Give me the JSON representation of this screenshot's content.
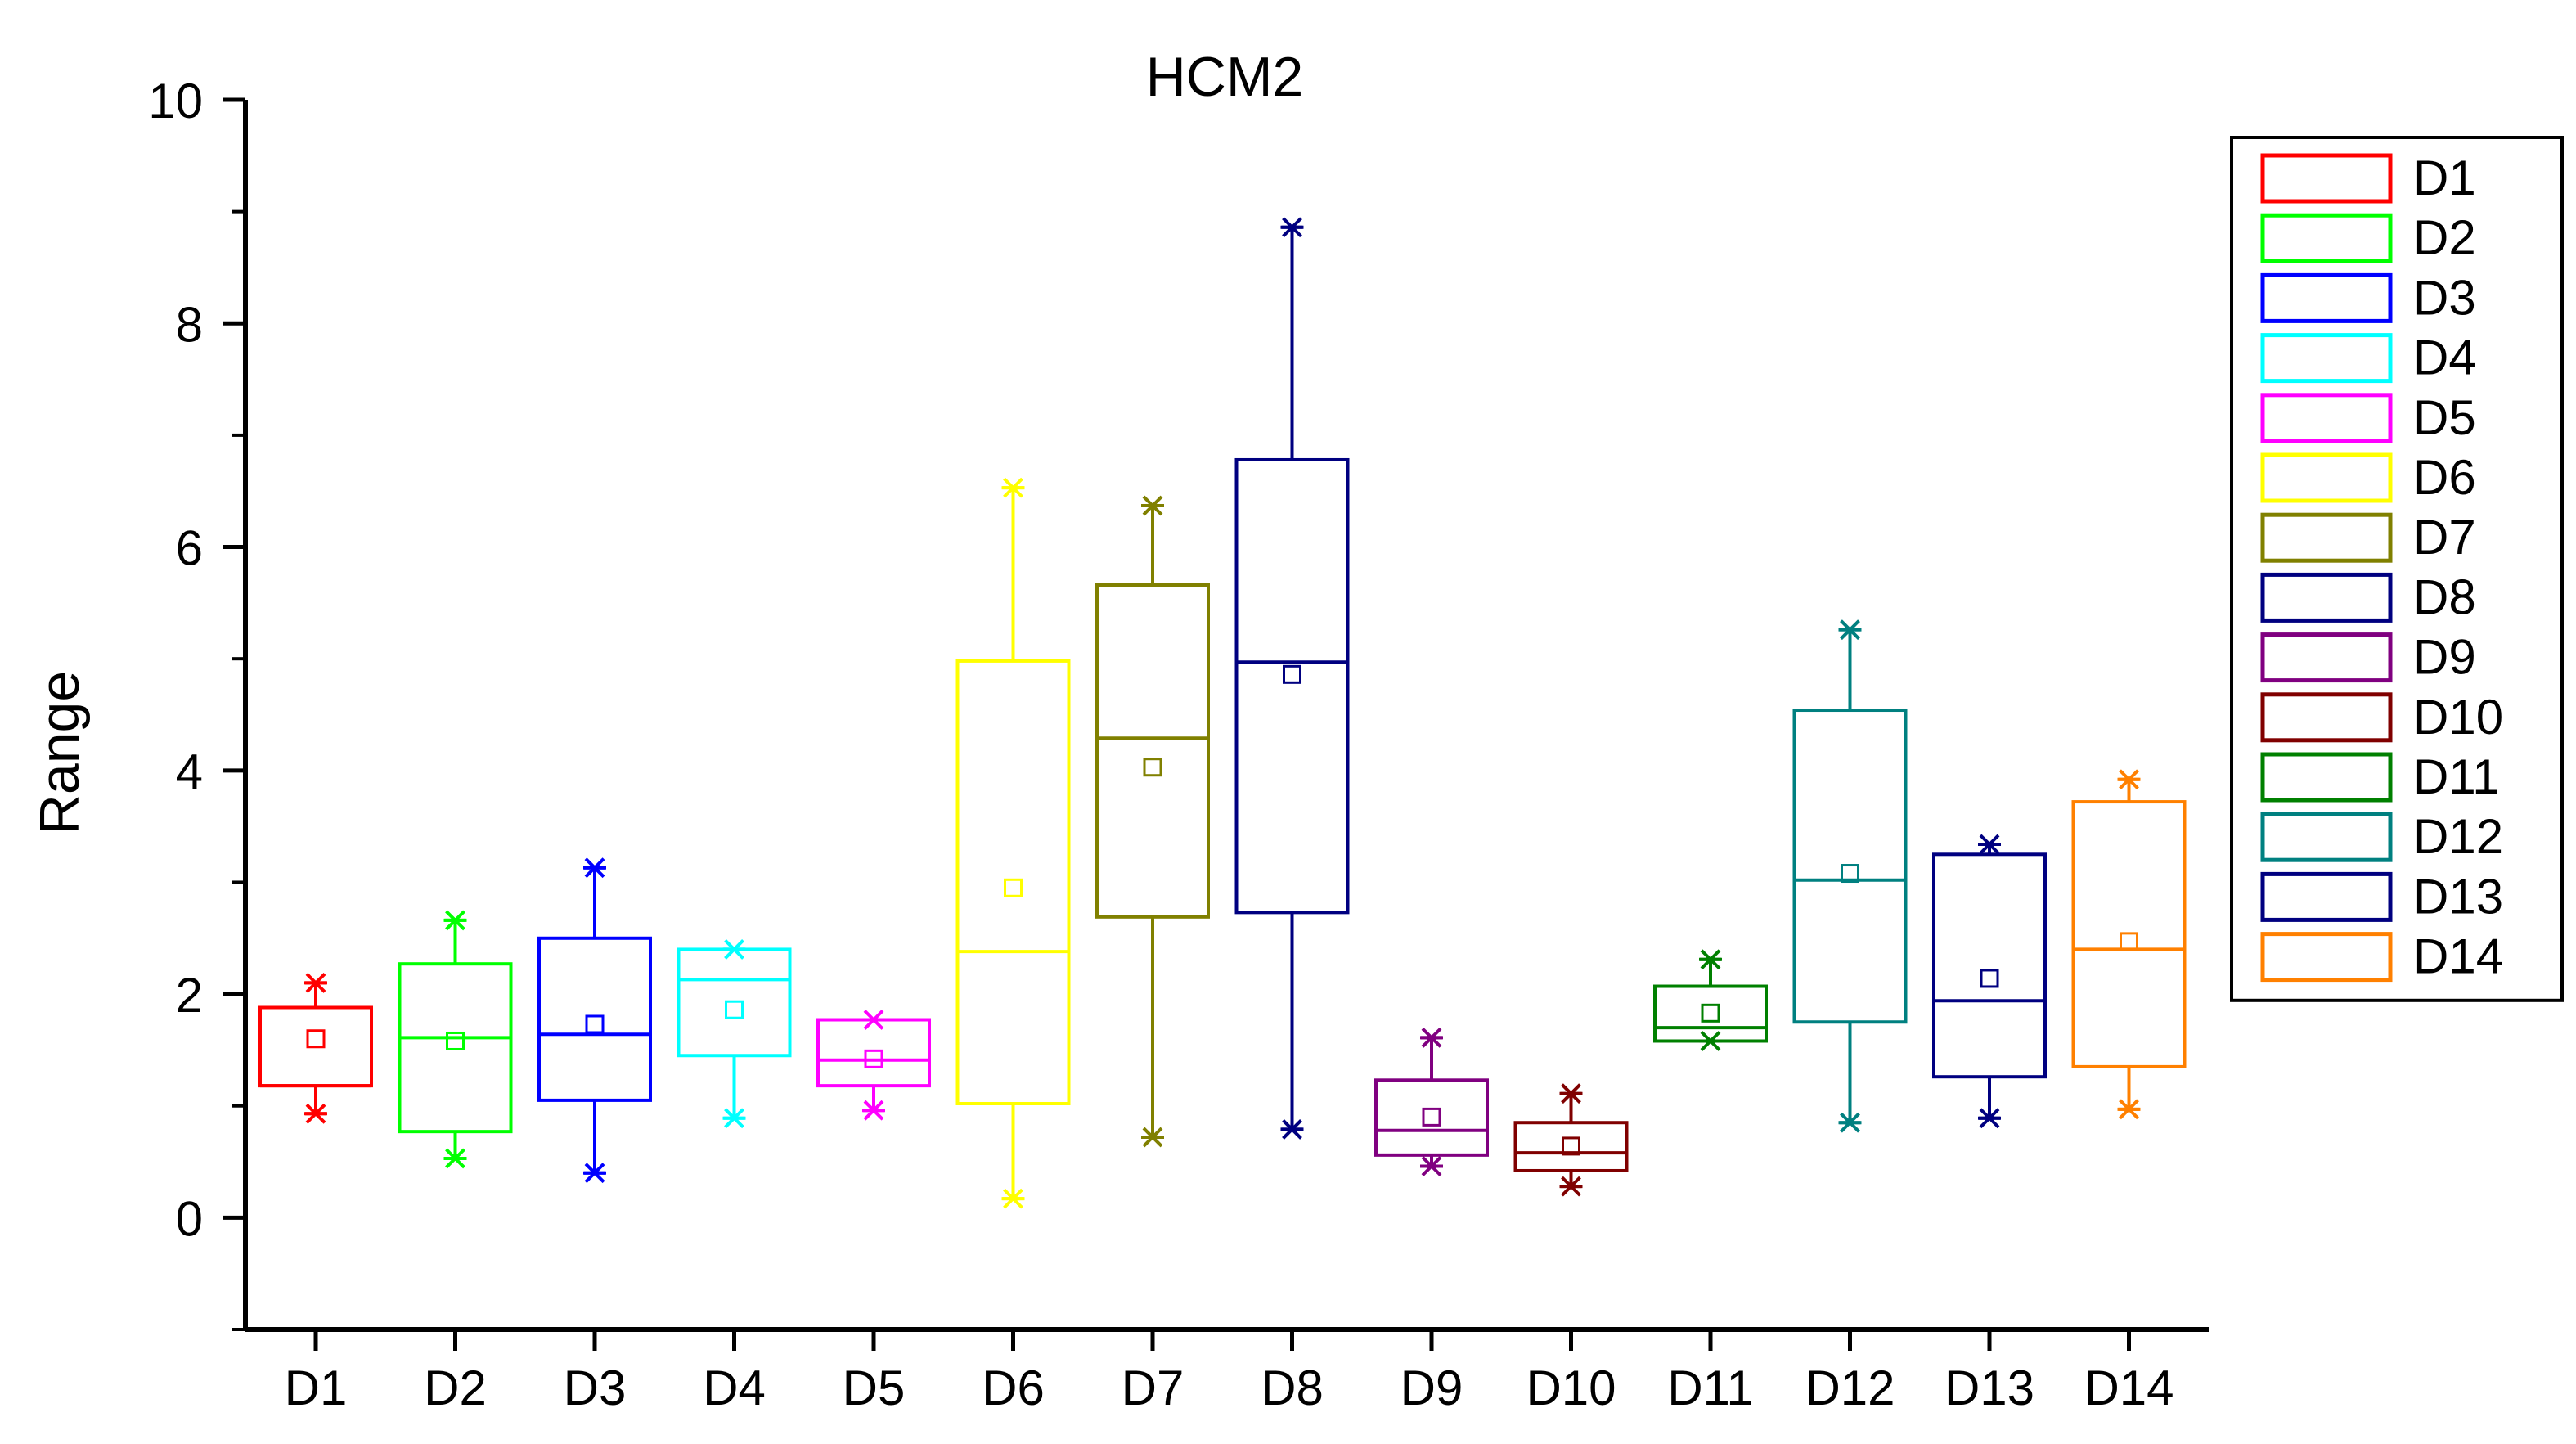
{
  "chart_data": {
    "type": "box",
    "title": "HCM2",
    "xlabel": "",
    "ylabel": "Range",
    "ylim": [
      -1,
      10
    ],
    "y_ticks": [
      "0",
      "2",
      "4",
      "6",
      "8",
      "10"
    ],
    "categories": [
      "D1",
      "D2",
      "D3",
      "D4",
      "D5",
      "D6",
      "D7",
      "D8",
      "D9",
      "D10",
      "D11",
      "D12",
      "D13",
      "D14"
    ],
    "legend_position": "right",
    "series": [
      {
        "name": "D1",
        "color": "#ff0000",
        "min": 0.93,
        "q1": 1.18,
        "median": 1.18,
        "q3": 1.88,
        "max": 2.1,
        "mean": 1.6
      },
      {
        "name": "D2",
        "color": "#00ff00",
        "min": 0.53,
        "q1": 0.77,
        "median": 1.61,
        "q3": 2.27,
        "max": 2.66,
        "mean": 1.58
      },
      {
        "name": "D3",
        "color": "#0000ff",
        "min": 0.4,
        "q1": 1.05,
        "median": 1.64,
        "q3": 2.5,
        "max": 3.13,
        "mean": 1.73
      },
      {
        "name": "D4",
        "color": "#00ffff",
        "min": 0.89,
        "q1": 1.45,
        "median": 2.13,
        "q3": 2.4,
        "max": 2.4,
        "mean": 1.86
      },
      {
        "name": "D5",
        "color": "#ff00ff",
        "min": 0.96,
        "q1": 1.18,
        "median": 1.41,
        "q3": 1.77,
        "max": 1.77,
        "mean": 1.42
      },
      {
        "name": "D6",
        "color": "#ffff00",
        "min": 0.17,
        "q1": 1.02,
        "median": 2.38,
        "q3": 4.98,
        "max": 6.53,
        "mean": 2.95
      },
      {
        "name": "D7",
        "color": "#808000",
        "min": 0.72,
        "q1": 2.69,
        "median": 4.29,
        "q3": 5.66,
        "max": 6.37,
        "mean": 4.03
      },
      {
        "name": "D8",
        "color": "#000080",
        "min": 0.79,
        "q1": 2.73,
        "median": 4.97,
        "q3": 6.78,
        "max": 8.86,
        "mean": 4.86
      },
      {
        "name": "D9",
        "color": "#800080",
        "min": 0.46,
        "q1": 0.56,
        "median": 0.78,
        "q3": 1.23,
        "max": 1.61,
        "mean": 0.9
      },
      {
        "name": "D10",
        "color": "#800000",
        "min": 0.28,
        "q1": 0.42,
        "median": 0.58,
        "q3": 0.85,
        "max": 1.11,
        "mean": 0.64
      },
      {
        "name": "D11",
        "color": "#008000",
        "min": 1.58,
        "q1": 1.58,
        "median": 1.7,
        "q3": 2.07,
        "max": 2.31,
        "mean": 1.83
      },
      {
        "name": "D12",
        "color": "#008080",
        "min": 0.85,
        "q1": 1.75,
        "median": 3.02,
        "q3": 4.54,
        "max": 5.26,
        "mean": 3.08
      },
      {
        "name": "D13",
        "color": "#000080",
        "min": 0.89,
        "q1": 1.26,
        "median": 1.94,
        "q3": 3.25,
        "max": 3.34,
        "mean": 2.14
      },
      {
        "name": "D14",
        "color": "#ff8000",
        "min": 0.97,
        "q1": 1.35,
        "median": 2.4,
        "q3": 3.72,
        "max": 3.92,
        "mean": 2.47
      }
    ]
  }
}
